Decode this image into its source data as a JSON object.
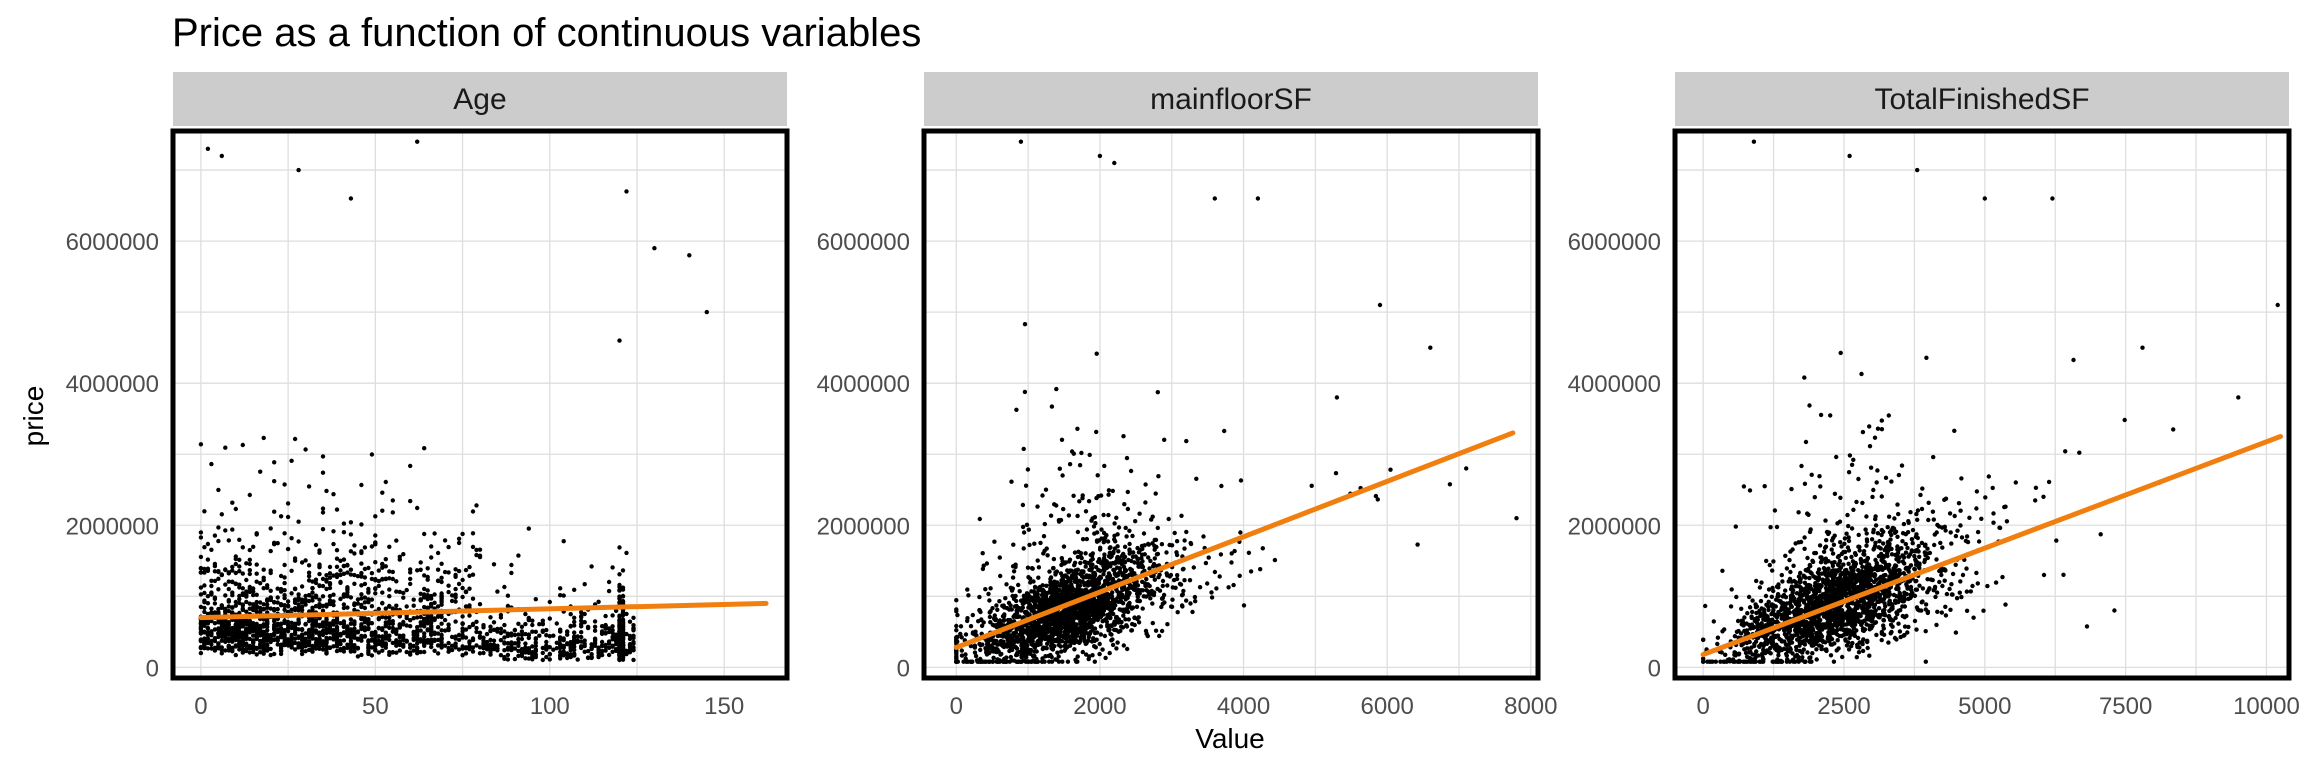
{
  "title": "Price as a function of continuous variables",
  "ylabel": "price",
  "xlabel": "Value",
  "colors": {
    "points": "#000000",
    "trend": "#f07f10",
    "strip": "#cccccc",
    "grid": "#dedede"
  },
  "chart_data": [
    {
      "type": "scatter",
      "panel": "Age",
      "xlim": [
        -8,
        168
      ],
      "ylim": [
        -150000,
        7550000
      ],
      "xticks": [
        0,
        50,
        100,
        150
      ],
      "yticks": [
        0,
        2000000,
        4000000,
        6000000
      ],
      "ytick_labels": [
        "0",
        "2000000",
        "4000000",
        "6000000"
      ],
      "trend_line": {
        "x": [
          0,
          162
        ],
        "y": [
          700000,
          900000
        ]
      },
      "points_note_outliers": [
        [
          2,
          7300000
        ],
        [
          6,
          7200000
        ],
        [
          28,
          7000000
        ],
        [
          62,
          7400000
        ],
        [
          122,
          6700000
        ],
        [
          43,
          6600000
        ],
        [
          130,
          5900000
        ],
        [
          140,
          5800000
        ],
        [
          145,
          5000000
        ],
        [
          120,
          4600000
        ]
      ]
    },
    {
      "type": "scatter",
      "panel": "mainfloorSF",
      "xlim": [
        -450,
        8100
      ],
      "ylim": [
        -150000,
        7550000
      ],
      "xticks": [
        0,
        2000,
        4000,
        6000,
        8000
      ],
      "yticks": [
        0,
        2000000,
        4000000,
        6000000
      ],
      "ytick_labels": [
        "0",
        "2000000",
        "4000000",
        "6000000"
      ],
      "trend_line": {
        "x": [
          0,
          7750
        ],
        "y": [
          280000,
          3300000
        ]
      },
      "points_note_outliers": [
        [
          900,
          7400000
        ],
        [
          2000,
          7200000
        ],
        [
          2200,
          7100000
        ],
        [
          3600,
          6600000
        ],
        [
          4200,
          6600000
        ],
        [
          5900,
          5100000
        ],
        [
          6600,
          4500000
        ],
        [
          7800,
          2100000
        ],
        [
          5300,
          3800000
        ],
        [
          7100,
          2800000
        ]
      ]
    },
    {
      "type": "scatter",
      "panel": "TotalFinishedSF",
      "xlim": [
        -500,
        10400
      ],
      "ylim": [
        -150000,
        7550000
      ],
      "xticks": [
        0,
        2500,
        5000,
        7500,
        10000
      ],
      "yticks": [
        0,
        2000000,
        4000000,
        6000000
      ],
      "ytick_labels": [
        "0",
        "2000000",
        "4000000",
        "6000000"
      ],
      "trend_line": {
        "x": [
          0,
          10250
        ],
        "y": [
          180000,
          3250000
        ]
      },
      "points_note_outliers": [
        [
          900,
          7400000
        ],
        [
          2600,
          7200000
        ],
        [
          3800,
          7000000
        ],
        [
          5000,
          6600000
        ],
        [
          6200,
          6600000
        ],
        [
          10200,
          5100000
        ],
        [
          7800,
          4500000
        ],
        [
          9500,
          3800000
        ],
        [
          7300,
          800000
        ],
        [
          8100,
          2600000
        ]
      ]
    }
  ]
}
